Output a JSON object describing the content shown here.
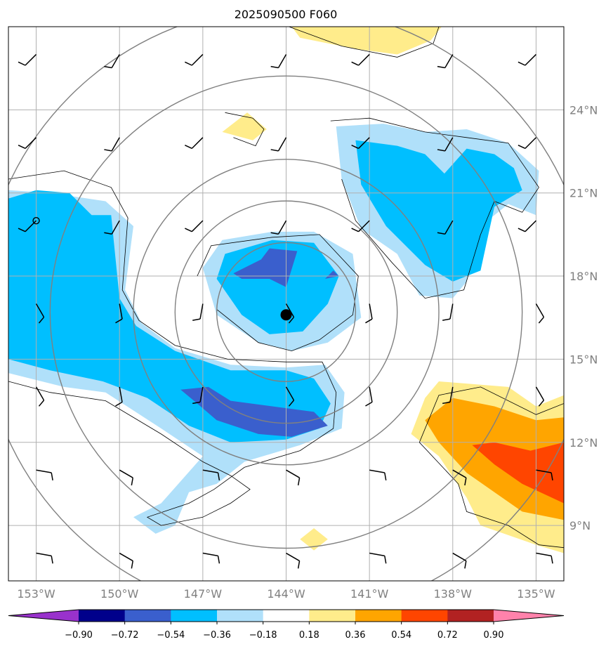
{
  "title": "2025090500 F060",
  "chart_data": {
    "type": "contour-map",
    "title": "2025090500 F060",
    "lon_range": [
      -154.0,
      -134.0
    ],
    "lat_range": [
      7.0,
      27.0
    ],
    "lon_ticks": [
      -153,
      -150,
      -147,
      -144,
      -141,
      -138,
      -135
    ],
    "lon_tick_labels": [
      "153°W",
      "150°W",
      "147°W",
      "144°W",
      "141°W",
      "138°W",
      "135°W"
    ],
    "lat_ticks": [
      9,
      12,
      15,
      18,
      21,
      24
    ],
    "lat_tick_labels": [
      "9°N",
      "12°N",
      "15°N",
      "18°N",
      "21°N",
      "24°N"
    ],
    "lat_label_side": "right",
    "grid": true,
    "range_rings_center": {
      "lon": -144.0,
      "lat": 16.7
    },
    "range_ring_radii_deg": [
      2.5,
      4.0,
      5.5,
      8.5,
      11.0
    ],
    "storm_center": {
      "lon": -144.0,
      "lat": 16.6
    },
    "open_circle": {
      "lon": -153.0,
      "lat": 20.0
    },
    "colorbar": {
      "orientation": "horizontal",
      "extend": "both",
      "ticks": [
        -0.9,
        -0.72,
        -0.54,
        -0.36,
        -0.18,
        0.18,
        0.36,
        0.54,
        0.72,
        0.9
      ],
      "tick_labels": [
        "−0.90",
        "−0.72",
        "−0.54",
        "−0.36",
        "−0.18",
        "0.18",
        "0.36",
        "0.54",
        "0.72",
        "0.90"
      ],
      "colors": [
        "#9932cc",
        "#00008b",
        "#3a5fcd",
        "#00bfff",
        "#b0e0fa",
        "#ffffff",
        "#ffec8b",
        "#ffa500",
        "#ff4500",
        "#b22222",
        "#ff82ab"
      ]
    },
    "fill_regions": [
      {
        "level": "-0.36",
        "color": "#b0e0fa",
        "pts": [
          [
            -154,
            21.1
          ],
          [
            -152.5,
            21.0
          ],
          [
            -150.5,
            20.7
          ],
          [
            -149.5,
            19.8
          ],
          [
            -149.8,
            17.5
          ],
          [
            -149.2,
            16.3
          ],
          [
            -148.0,
            15.4
          ],
          [
            -146.0,
            14.8
          ],
          [
            -144.0,
            14.7
          ],
          [
            -142.6,
            14.8
          ],
          [
            -141.9,
            13.8
          ],
          [
            -142.0,
            12.5
          ],
          [
            -143.5,
            11.9
          ],
          [
            -145.5,
            11.3
          ],
          [
            -146.5,
            10.5
          ],
          [
            -147.5,
            10.2
          ],
          [
            -148.0,
            9.0
          ],
          [
            -148.7,
            8.7
          ],
          [
            -149.5,
            9.3
          ],
          [
            -148.5,
            9.8
          ],
          [
            -147.0,
            11.5
          ],
          [
            -148.5,
            12.5
          ],
          [
            -150.5,
            13.8
          ],
          [
            -152.0,
            14.0
          ],
          [
            -154,
            14.5
          ]
        ]
      },
      {
        "level": "-0.36",
        "color": "#b0e0fa",
        "pts": [
          [
            -147.0,
            18.3
          ],
          [
            -146.3,
            19.3
          ],
          [
            -144.5,
            19.6
          ],
          [
            -143.0,
            19.6
          ],
          [
            -141.6,
            18.8
          ],
          [
            -141.3,
            16.5
          ],
          [
            -142.5,
            15.6
          ],
          [
            -143.8,
            15.3
          ],
          [
            -145.0,
            15.6
          ],
          [
            -146.5,
            16.6
          ]
        ]
      },
      {
        "level": "-0.36",
        "color": "#b0e0fa",
        "pts": [
          [
            -142.2,
            23.4
          ],
          [
            -140.5,
            23.5
          ],
          [
            -139.0,
            23.2
          ],
          [
            -137.5,
            23.3
          ],
          [
            -136.0,
            22.8
          ],
          [
            -134.9,
            21.8
          ],
          [
            -135.0,
            20.2
          ],
          [
            -136.0,
            20.6
          ],
          [
            -137.0,
            19.8
          ],
          [
            -137.5,
            17.8
          ],
          [
            -138.0,
            17.2
          ],
          [
            -139.2,
            17.3
          ],
          [
            -140.0,
            18.8
          ],
          [
            -141.3,
            19.7
          ],
          [
            -142.0,
            21.5
          ]
        ]
      },
      {
        "level": "-0.36",
        "color": "#00bfff",
        "pts": [
          [
            -154,
            20.8
          ],
          [
            -153.0,
            21.1
          ],
          [
            -151.8,
            21.0
          ],
          [
            -151.0,
            20.2
          ],
          [
            -150.3,
            20.2
          ],
          [
            -150.0,
            17.2
          ],
          [
            -149.4,
            16.2
          ],
          [
            -148.0,
            15.3
          ],
          [
            -146.0,
            14.6
          ],
          [
            -144.0,
            14.6
          ],
          [
            -143.0,
            14.3
          ],
          [
            -142.4,
            13.4
          ],
          [
            -142.8,
            12.5
          ],
          [
            -144.0,
            12.1
          ],
          [
            -146.0,
            12.0
          ],
          [
            -147.5,
            12.6
          ],
          [
            -149.0,
            13.6
          ],
          [
            -150.6,
            14.2
          ],
          [
            -152.5,
            14.6
          ],
          [
            -154,
            15.0
          ]
        ]
      },
      {
        "level": "-0.36",
        "color": "#00bfff",
        "pts": [
          [
            -146.5,
            17.9
          ],
          [
            -146.2,
            18.8
          ],
          [
            -144.5,
            19.3
          ],
          [
            -143.0,
            19.2
          ],
          [
            -142.1,
            18.0
          ],
          [
            -142.5,
            17.0
          ],
          [
            -143.4,
            16.0
          ],
          [
            -144.6,
            15.9
          ],
          [
            -145.6,
            16.6
          ]
        ]
      },
      {
        "level": "-0.36",
        "color": "#00bfff",
        "pts": [
          [
            -141.5,
            22.9
          ],
          [
            -140.0,
            22.7
          ],
          [
            -139.0,
            22.4
          ],
          [
            -138.3,
            21.7
          ],
          [
            -137.5,
            22.6
          ],
          [
            -136.5,
            22.4
          ],
          [
            -135.8,
            21.9
          ],
          [
            -135.5,
            21.1
          ],
          [
            -136.5,
            20.5
          ],
          [
            -137.0,
            18.2
          ],
          [
            -138.0,
            17.8
          ],
          [
            -139.0,
            18.4
          ],
          [
            -140.4,
            19.8
          ],
          [
            -141.3,
            21.3
          ]
        ]
      },
      {
        "level": "-0.54",
        "color": "#3a5fcd",
        "pts": [
          [
            -145.9,
            18.1
          ],
          [
            -144.9,
            18.6
          ],
          [
            -144.6,
            19.0
          ],
          [
            -143.6,
            18.9
          ],
          [
            -144.0,
            17.6
          ],
          [
            -144.6,
            17.9
          ],
          [
            -145.6,
            17.9
          ]
        ]
      },
      {
        "level": "-0.54",
        "color": "#3a5fcd",
        "pts": [
          [
            -142.6,
            17.9
          ],
          [
            -142.3,
            18.2
          ],
          [
            -142.1,
            18.0
          ]
        ]
      },
      {
        "level": "-0.54",
        "color": "#3a5fcd",
        "pts": [
          [
            -147.8,
            13.9
          ],
          [
            -146.8,
            14.0
          ],
          [
            -146.0,
            13.5
          ],
          [
            -144.5,
            13.3
          ],
          [
            -143.0,
            13.1
          ],
          [
            -142.5,
            12.6
          ],
          [
            -143.8,
            12.2
          ],
          [
            -145.0,
            12.3
          ],
          [
            -146.5,
            12.8
          ],
          [
            -147.2,
            13.4
          ]
        ]
      },
      {
        "level": "0.18",
        "color": "#ffec8b",
        "pts": [
          [
            -143.8,
            27.0
          ],
          [
            -143.5,
            26.6
          ],
          [
            -141.5,
            26.2
          ],
          [
            -140.0,
            26.0
          ],
          [
            -138.8,
            26.5
          ],
          [
            -138.4,
            27.0
          ]
        ]
      },
      {
        "level": "0.18",
        "color": "#ffec8b",
        "pts": [
          [
            -146.3,
            23.2
          ],
          [
            -145.4,
            23.9
          ],
          [
            -144.7,
            23.3
          ],
          [
            -145.2,
            22.9
          ]
        ]
      },
      {
        "level": "0.18",
        "color": "#ffec8b",
        "pts": [
          [
            -143.5,
            8.5
          ],
          [
            -143.0,
            8.9
          ],
          [
            -142.5,
            8.5
          ],
          [
            -143.0,
            8.1
          ]
        ]
      },
      {
        "level": "0.18",
        "color": "#ffec8b",
        "pts": [
          [
            -138.5,
            14.2
          ],
          [
            -136.0,
            14.0
          ],
          [
            -135.0,
            13.3
          ],
          [
            -134.0,
            13.7
          ],
          [
            -134.0,
            8.0
          ],
          [
            -135.0,
            8.3
          ],
          [
            -137.0,
            9.0
          ],
          [
            -137.5,
            10.0
          ],
          [
            -138.5,
            11.5
          ],
          [
            -139.5,
            12.3
          ],
          [
            -139.0,
            13.6
          ]
        ]
      },
      {
        "level": "0.36",
        "color": "#ffa500",
        "pts": [
          [
            -139.0,
            12.8
          ],
          [
            -138.0,
            13.6
          ],
          [
            -136.5,
            13.3
          ],
          [
            -135.0,
            12.8
          ],
          [
            -134.0,
            12.9
          ],
          [
            -134.0,
            9.2
          ],
          [
            -135.5,
            9.5
          ],
          [
            -136.5,
            10.2
          ],
          [
            -137.5,
            10.9
          ],
          [
            -138.5,
            12.0
          ]
        ]
      },
      {
        "level": "0.54",
        "color": "#ff4500",
        "pts": [
          [
            -137.3,
            11.9
          ],
          [
            -136.5,
            12.0
          ],
          [
            -135.2,
            11.7
          ],
          [
            -134.0,
            12.0
          ],
          [
            -134.0,
            9.8
          ],
          [
            -135.5,
            10.5
          ],
          [
            -136.5,
            11.2
          ]
        ]
      }
    ],
    "contours": [
      {
        "level": "0.0",
        "pts": [
          [
            -154,
            21.5
          ],
          [
            -152.0,
            21.8
          ],
          [
            -150.3,
            21.2
          ],
          [
            -149.7,
            20.1
          ],
          [
            -149.9,
            17.5
          ],
          [
            -149.3,
            16.4
          ],
          [
            -148.0,
            15.5
          ],
          [
            -146.1,
            15.0
          ],
          [
            -144.0,
            14.9
          ],
          [
            -142.7,
            14.9
          ],
          [
            -142.2,
            13.8
          ],
          [
            -142.3,
            12.5
          ],
          [
            -143.5,
            11.7
          ],
          [
            -145.5,
            11.1
          ],
          [
            -146.6,
            10.3
          ],
          [
            -147.5,
            9.8
          ],
          [
            -149.0,
            9.3
          ],
          [
            -148.5,
            9.0
          ],
          [
            -147.0,
            9.3
          ],
          [
            -146.0,
            9.8
          ],
          [
            -145.3,
            10.3
          ],
          [
            -146.0,
            10.8
          ],
          [
            -147.0,
            11.3
          ],
          [
            -148.5,
            12.3
          ],
          [
            -150.5,
            13.5
          ],
          [
            -152.5,
            13.8
          ],
          [
            -154,
            14.2
          ]
        ]
      },
      {
        "level": "0.0",
        "pts": [
          [
            -147.2,
            18.0
          ],
          [
            -146.7,
            19.1
          ],
          [
            -144.5,
            19.4
          ],
          [
            -142.8,
            19.5
          ],
          [
            -141.4,
            18.0
          ],
          [
            -141.6,
            16.6
          ],
          [
            -142.8,
            15.7
          ],
          [
            -143.8,
            15.3
          ],
          [
            -145.0,
            15.6
          ],
          [
            -146.5,
            16.8
          ]
        ]
      },
      {
        "level": "0.0",
        "pts": [
          [
            -142.4,
            23.6
          ],
          [
            -141.0,
            23.7
          ],
          [
            -139.0,
            23.2
          ],
          [
            -137.5,
            23.0
          ],
          [
            -136.0,
            22.8
          ],
          [
            -134.9,
            21.2
          ],
          [
            -135.5,
            20.3
          ],
          [
            -136.5,
            20.7
          ],
          [
            -137.0,
            19.5
          ],
          [
            -137.6,
            17.5
          ],
          [
            -139.0,
            17.2
          ],
          [
            -140.2,
            18.5
          ],
          [
            -141.5,
            20.0
          ],
          [
            -142.0,
            21.5
          ]
        ]
      },
      {
        "level": "0.0",
        "pts": [
          [
            -146.2,
            23.9
          ],
          [
            -145.2,
            23.7
          ],
          [
            -144.8,
            23.3
          ],
          [
            -145.1,
            22.7
          ],
          [
            -145.9,
            23.0
          ]
        ]
      },
      {
        "level": "0.0",
        "pts": [
          [
            -143.9,
            27.0
          ],
          [
            -142.0,
            26.3
          ],
          [
            -140.0,
            25.9
          ],
          [
            -138.7,
            26.4
          ],
          [
            -138.5,
            27.0
          ]
        ]
      },
      {
        "level": "0.0",
        "pts": [
          [
            -139.2,
            12.0
          ],
          [
            -138.5,
            13.7
          ],
          [
            -137.0,
            14.0
          ],
          [
            -135.0,
            13.0
          ],
          [
            -134.0,
            13.4
          ]
        ]
      },
      {
        "level": "0.0",
        "pts": [
          [
            -139.2,
            12.0
          ],
          [
            -137.8,
            10.5
          ],
          [
            -137.5,
            9.5
          ],
          [
            -136.0,
            9.0
          ],
          [
            -134.9,
            8.3
          ],
          [
            -134.0,
            8.2
          ]
        ]
      }
    ],
    "wind_barbs_lon": [
      -153,
      -150,
      -147,
      -144,
      -141,
      -138,
      -135
    ],
    "wind_barbs_lat": [
      26,
      23,
      20,
      17,
      14,
      11,
      8
    ]
  }
}
